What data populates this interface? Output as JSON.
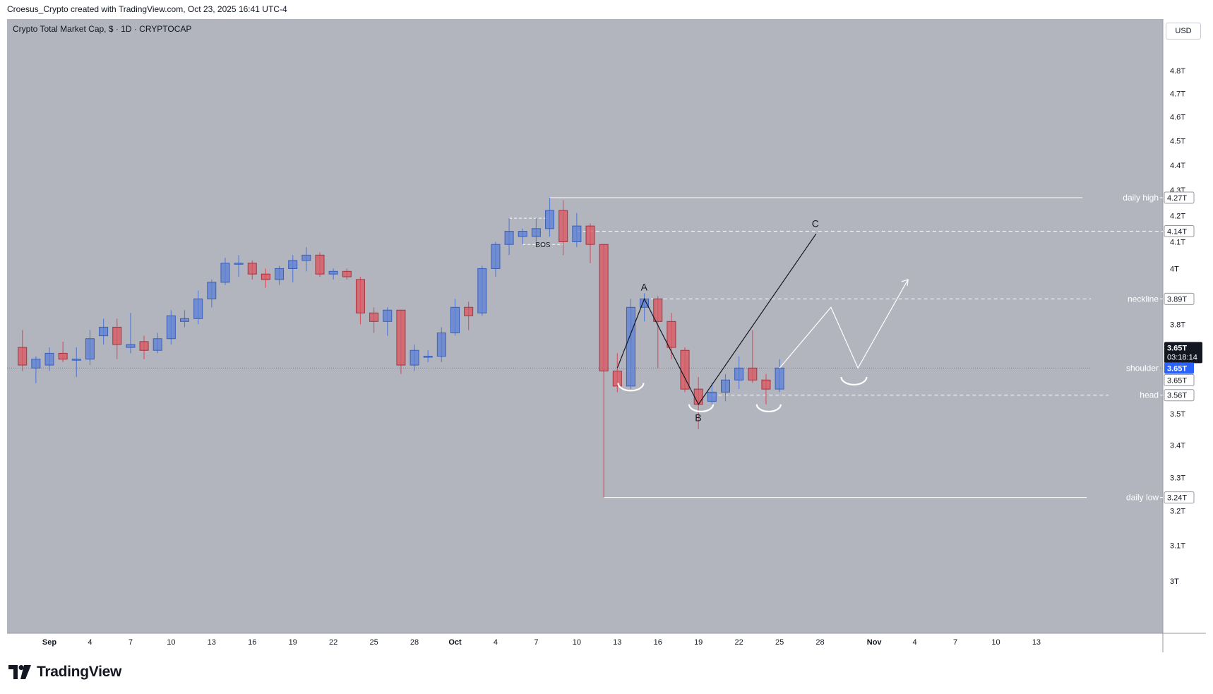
{
  "header": {
    "attribution": "Croesus_Crypto created with TradingView.com, Oct 23, 2025 16:41 UTC-4"
  },
  "symbol_label": "Crypto Total Market Cap, $ · 1D · CRYPTOCAP",
  "currency": "USD",
  "brand": "TradingView",
  "colors": {
    "background": "#b2b5be",
    "up": "#5b7fd4",
    "down": "#d9555f",
    "price_line": "#2962ff",
    "annotation": "#ffffff"
  },
  "chart_data": {
    "type": "candlestick",
    "title": "Crypto Total Market Cap, $ · 1D · CRYPTOCAP",
    "y_axis": {
      "scale": "log",
      "range": [
        3.0,
        5.0
      ],
      "ticks": [
        "4.8T",
        "4.7T",
        "4.6T",
        "4.5T",
        "4.4T",
        "4.3T",
        "4.2T",
        "4.1T",
        "4T",
        "3.8T",
        "3.5T",
        "3.4T",
        "3.3T",
        "3.2T",
        "3.1T",
        "3T"
      ]
    },
    "x_axis": {
      "ticks": [
        {
          "label": "Sep",
          "day": 0
        },
        {
          "label": "4",
          "day": 3
        },
        {
          "label": "7",
          "day": 6
        },
        {
          "label": "10",
          "day": 9
        },
        {
          "label": "13",
          "day": 12
        },
        {
          "label": "16",
          "day": 15
        },
        {
          "label": "19",
          "day": 18
        },
        {
          "label": "22",
          "day": 21
        },
        {
          "label": "25",
          "day": 24
        },
        {
          "label": "28",
          "day": 27
        },
        {
          "label": "Oct",
          "day": 30
        },
        {
          "label": "4",
          "day": 33
        },
        {
          "label": "7",
          "day": 36
        },
        {
          "label": "10",
          "day": 39
        },
        {
          "label": "13",
          "day": 42
        },
        {
          "label": "16",
          "day": 45
        },
        {
          "label": "19",
          "day": 48
        },
        {
          "label": "22",
          "day": 51
        },
        {
          "label": "25",
          "day": 54
        },
        {
          "label": "28",
          "day": 57
        },
        {
          "label": "Nov",
          "day": 61
        },
        {
          "label": "4",
          "day": 64
        },
        {
          "label": "7",
          "day": 67
        },
        {
          "label": "10",
          "day": 70
        },
        {
          "label": "13",
          "day": 73
        }
      ]
    },
    "candles": [
      {
        "day": -2,
        "o": 3.72,
        "h": 3.78,
        "l": 3.64,
        "c": 3.66
      },
      {
        "day": -1,
        "o": 3.65,
        "h": 3.69,
        "l": 3.6,
        "c": 3.68
      },
      {
        "day": 0,
        "o": 3.66,
        "h": 3.72,
        "l": 3.64,
        "c": 3.7
      },
      {
        "day": 1,
        "o": 3.7,
        "h": 3.74,
        "l": 3.67,
        "c": 3.68
      },
      {
        "day": 2,
        "o": 3.68,
        "h": 3.72,
        "l": 3.62,
        "c": 3.68
      },
      {
        "day": 3,
        "o": 3.68,
        "h": 3.78,
        "l": 3.66,
        "c": 3.75
      },
      {
        "day": 4,
        "o": 3.76,
        "h": 3.82,
        "l": 3.73,
        "c": 3.79
      },
      {
        "day": 5,
        "o": 3.79,
        "h": 3.82,
        "l": 3.68,
        "c": 3.73
      },
      {
        "day": 6,
        "o": 3.72,
        "h": 3.84,
        "l": 3.7,
        "c": 3.73
      },
      {
        "day": 7,
        "o": 3.74,
        "h": 3.76,
        "l": 3.68,
        "c": 3.71
      },
      {
        "day": 8,
        "o": 3.71,
        "h": 3.77,
        "l": 3.7,
        "c": 3.75
      },
      {
        "day": 9,
        "o": 3.75,
        "h": 3.85,
        "l": 3.73,
        "c": 3.83
      },
      {
        "day": 10,
        "o": 3.81,
        "h": 3.85,
        "l": 3.79,
        "c": 3.82
      },
      {
        "day": 11,
        "o": 3.82,
        "h": 3.92,
        "l": 3.8,
        "c": 3.89
      },
      {
        "day": 12,
        "o": 3.89,
        "h": 3.96,
        "l": 3.86,
        "c": 3.95
      },
      {
        "day": 13,
        "o": 3.95,
        "h": 4.04,
        "l": 3.94,
        "c": 4.02
      },
      {
        "day": 14,
        "o": 4.02,
        "h": 4.05,
        "l": 3.97,
        "c": 4.02
      },
      {
        "day": 15,
        "o": 4.02,
        "h": 4.03,
        "l": 3.96,
        "c": 3.98
      },
      {
        "day": 16,
        "o": 3.98,
        "h": 4.0,
        "l": 3.93,
        "c": 3.96
      },
      {
        "day": 17,
        "o": 3.96,
        "h": 4.01,
        "l": 3.94,
        "c": 4.0
      },
      {
        "day": 18,
        "o": 4.0,
        "h": 4.05,
        "l": 3.95,
        "c": 4.03
      },
      {
        "day": 19,
        "o": 4.03,
        "h": 4.08,
        "l": 3.99,
        "c": 4.05
      },
      {
        "day": 20,
        "o": 4.05,
        "h": 4.06,
        "l": 3.97,
        "c": 3.98
      },
      {
        "day": 21,
        "o": 3.98,
        "h": 4.0,
        "l": 3.96,
        "c": 3.99
      },
      {
        "day": 22,
        "o": 3.99,
        "h": 4.0,
        "l": 3.96,
        "c": 3.97
      },
      {
        "day": 23,
        "o": 3.96,
        "h": 3.97,
        "l": 3.8,
        "c": 3.84
      },
      {
        "day": 24,
        "o": 3.84,
        "h": 3.86,
        "l": 3.77,
        "c": 3.81
      },
      {
        "day": 25,
        "o": 3.81,
        "h": 3.86,
        "l": 3.76,
        "c": 3.85
      },
      {
        "day": 26,
        "o": 3.85,
        "h": 3.85,
        "l": 3.63,
        "c": 3.66
      },
      {
        "day": 27,
        "o": 3.66,
        "h": 3.73,
        "l": 3.64,
        "c": 3.71
      },
      {
        "day": 28,
        "o": 3.69,
        "h": 3.71,
        "l": 3.67,
        "c": 3.69
      },
      {
        "day": 29,
        "o": 3.69,
        "h": 3.79,
        "l": 3.67,
        "c": 3.77
      },
      {
        "day": 30,
        "o": 3.77,
        "h": 3.89,
        "l": 3.76,
        "c": 3.86
      },
      {
        "day": 31,
        "o": 3.86,
        "h": 3.88,
        "l": 3.78,
        "c": 3.83
      },
      {
        "day": 32,
        "o": 3.84,
        "h": 4.01,
        "l": 3.83,
        "c": 4.0
      },
      {
        "day": 33,
        "o": 4.0,
        "h": 4.1,
        "l": 3.97,
        "c": 4.09
      },
      {
        "day": 34,
        "o": 4.09,
        "h": 4.19,
        "l": 4.05,
        "c": 4.14
      },
      {
        "day": 35,
        "o": 4.12,
        "h": 4.15,
        "l": 4.09,
        "c": 4.14
      },
      {
        "day": 36,
        "o": 4.12,
        "h": 4.19,
        "l": 4.1,
        "c": 4.15
      },
      {
        "day": 37,
        "o": 4.15,
        "h": 4.27,
        "l": 4.12,
        "c": 4.22
      },
      {
        "day": 38,
        "o": 4.22,
        "h": 4.26,
        "l": 4.05,
        "c": 4.1
      },
      {
        "day": 39,
        "o": 4.1,
        "h": 4.21,
        "l": 4.08,
        "c": 4.16
      },
      {
        "day": 40,
        "o": 4.16,
        "h": 4.17,
        "l": 4.02,
        "c": 4.09
      },
      {
        "day": 41,
        "o": 4.09,
        "h": 4.09,
        "l": 3.24,
        "c": 3.64
      },
      {
        "day": 42,
        "o": 3.64,
        "h": 3.7,
        "l": 3.57,
        "c": 3.59
      },
      {
        "day": 43,
        "o": 3.59,
        "h": 3.89,
        "l": 3.58,
        "c": 3.86
      },
      {
        "day": 44,
        "o": 3.86,
        "h": 3.91,
        "l": 3.81,
        "c": 3.89
      },
      {
        "day": 45,
        "o": 3.89,
        "h": 3.9,
        "l": 3.65,
        "c": 3.81
      },
      {
        "day": 46,
        "o": 3.81,
        "h": 3.84,
        "l": 3.68,
        "c": 3.72
      },
      {
        "day": 47,
        "o": 3.71,
        "h": 3.72,
        "l": 3.57,
        "c": 3.58
      },
      {
        "day": 48,
        "o": 3.58,
        "h": 3.62,
        "l": 3.45,
        "c": 3.53
      },
      {
        "day": 49,
        "o": 3.54,
        "h": 3.6,
        "l": 3.53,
        "c": 3.57
      },
      {
        "day": 50,
        "o": 3.57,
        "h": 3.63,
        "l": 3.54,
        "c": 3.61
      },
      {
        "day": 51,
        "o": 3.61,
        "h": 3.69,
        "l": 3.58,
        "c": 3.65
      },
      {
        "day": 52,
        "o": 3.65,
        "h": 3.78,
        "l": 3.6,
        "c": 3.61
      },
      {
        "day": 53,
        "o": 3.61,
        "h": 3.63,
        "l": 3.53,
        "c": 3.58
      },
      {
        "day": 54,
        "o": 3.58,
        "h": 3.68,
        "l": 3.57,
        "c": 3.65
      }
    ],
    "levels": [
      {
        "label": "daily high",
        "value": 4.27,
        "badge": "4.27T",
        "style": "solid"
      },
      {
        "label": "",
        "value": 4.14,
        "badge": "4.14T",
        "style": "dashed"
      },
      {
        "label": "neckline",
        "value": 3.89,
        "badge": "3.89T",
        "style": "dashed"
      },
      {
        "label": "shoulder",
        "value": 3.65,
        "badge": "3.65T",
        "style": "dotted"
      },
      {
        "label": "head",
        "value": 3.56,
        "badge": "3.56T",
        "style": "dashed"
      },
      {
        "label": "daily low",
        "value": 3.24,
        "badge": "3.24T",
        "style": "solid"
      }
    ],
    "current_price": {
      "badge": "3.65T",
      "countdown": "03:18:14",
      "value": 3.65
    },
    "second_price_badge": "3.65T",
    "annotations": {
      "bos": "BOS",
      "abc_labels": [
        "A",
        "B",
        "C"
      ]
    }
  }
}
